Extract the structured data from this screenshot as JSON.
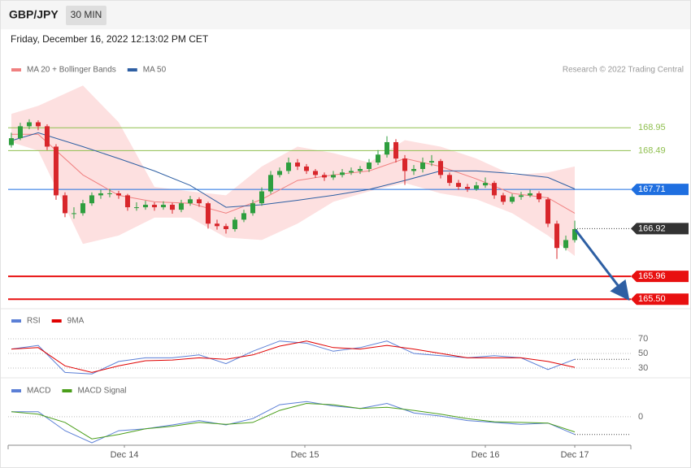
{
  "header": {
    "symbol": "GBP/JPY",
    "interval": "30 MIN",
    "timestamp": "Friday, December 16, 2022 12:13:02 PM CET",
    "credit": "Research © 2022 Trading Central"
  },
  "chart_data": [
    {
      "type": "candlestick",
      "x": [
        0,
        1,
        2,
        3,
        4,
        5,
        6,
        7,
        8,
        9,
        10,
        11,
        12,
        13,
        14,
        15,
        16,
        17,
        18,
        19,
        20,
        21,
        22,
        23,
        24,
        25,
        26,
        27,
        28,
        29,
        30,
        31,
        32,
        33,
        34,
        35,
        36,
        37,
        38,
        39,
        40,
        41,
        42,
        43,
        44,
        45,
        46,
        47,
        48,
        49,
        50,
        51,
        52,
        53,
        54,
        55,
        56,
        57,
        58,
        59,
        60,
        61,
        62,
        63
      ],
      "ohlc": [
        [
          168.6,
          168.85,
          168.55,
          168.74
        ],
        [
          168.74,
          169.05,
          168.7,
          168.98
        ],
        [
          168.98,
          169.12,
          168.92,
          169.06
        ],
        [
          169.06,
          169.1,
          168.9,
          168.98
        ],
        [
          168.98,
          169.02,
          168.5,
          168.57
        ],
        [
          168.57,
          168.62,
          167.5,
          167.59
        ],
        [
          167.59,
          167.65,
          167.15,
          167.23
        ],
        [
          167.23,
          167.35,
          167.12,
          167.23
        ],
        [
          167.23,
          167.5,
          167.18,
          167.43
        ],
        [
          167.43,
          167.65,
          167.38,
          167.59
        ],
        [
          167.59,
          167.7,
          167.52,
          167.63
        ],
        [
          167.63,
          167.72,
          167.55,
          167.63
        ],
        [
          167.63,
          167.68,
          167.52,
          167.59
        ],
        [
          167.59,
          167.62,
          167.28,
          167.35
        ],
        [
          167.35,
          167.45,
          167.28,
          167.35
        ],
        [
          167.35,
          167.48,
          167.3,
          167.4
        ],
        [
          167.4,
          167.45,
          167.28,
          167.35
        ],
        [
          167.35,
          167.47,
          167.3,
          167.4
        ],
        [
          167.4,
          167.44,
          167.22,
          167.3
        ],
        [
          167.3,
          167.5,
          167.25,
          167.43
        ],
        [
          167.43,
          167.58,
          167.38,
          167.51
        ],
        [
          167.51,
          167.55,
          167.36,
          167.43
        ],
        [
          167.43,
          167.46,
          166.92,
          167.02
        ],
        [
          167.02,
          167.1,
          166.9,
          166.97
        ],
        [
          166.97,
          167.02,
          166.82,
          166.91
        ],
        [
          166.91,
          167.15,
          166.86,
          167.1
        ],
        [
          167.1,
          167.3,
          167.05,
          167.23
        ],
        [
          167.23,
          167.5,
          167.18,
          167.43
        ],
        [
          167.43,
          167.75,
          167.38,
          167.67
        ],
        [
          167.67,
          168.08,
          167.62,
          168.0
        ],
        [
          168.0,
          168.15,
          167.95,
          168.08
        ],
        [
          168.08,
          168.35,
          168.02,
          168.25
        ],
        [
          168.25,
          168.32,
          168.1,
          168.17
        ],
        [
          168.17,
          168.22,
          168.02,
          168.08
        ],
        [
          168.08,
          168.12,
          167.94,
          168.0
        ],
        [
          168.0,
          168.05,
          167.88,
          167.95
        ],
        [
          167.95,
          168.08,
          167.9,
          168.0
        ],
        [
          168.0,
          168.12,
          167.95,
          168.05
        ],
        [
          168.05,
          168.15,
          168.0,
          168.08
        ],
        [
          168.08,
          168.18,
          168.02,
          168.12
        ],
        [
          168.12,
          168.32,
          168.06,
          168.25
        ],
        [
          168.25,
          168.5,
          168.2,
          168.41
        ],
        [
          168.41,
          168.78,
          168.35,
          168.66
        ],
        [
          168.66,
          168.72,
          168.25,
          168.33
        ],
        [
          168.33,
          168.4,
          167.8,
          168.08
        ],
        [
          168.08,
          168.2,
          168.0,
          168.12
        ],
        [
          168.12,
          168.35,
          168.05,
          168.25
        ],
        [
          168.25,
          168.4,
          168.18,
          168.28
        ],
        [
          168.28,
          168.32,
          167.93,
          168.0
        ],
        [
          168.0,
          168.05,
          167.78,
          167.84
        ],
        [
          167.84,
          167.9,
          167.7,
          167.76
        ],
        [
          167.76,
          167.82,
          167.66,
          167.72
        ],
        [
          167.72,
          167.86,
          167.68,
          167.79
        ],
        [
          167.79,
          167.95,
          167.74,
          167.84
        ],
        [
          167.84,
          167.88,
          167.52,
          167.59
        ],
        [
          167.59,
          167.64,
          167.4,
          167.46
        ],
        [
          167.46,
          167.62,
          167.42,
          167.56
        ],
        [
          167.56,
          167.66,
          167.5,
          167.59
        ],
        [
          167.59,
          167.7,
          167.55,
          167.63
        ],
        [
          167.63,
          167.67,
          167.45,
          167.51
        ],
        [
          167.51,
          167.55,
          166.95,
          167.02
        ],
        [
          167.02,
          167.08,
          166.31,
          166.53
        ],
        [
          166.53,
          166.78,
          166.48,
          166.69
        ],
        [
          166.69,
          167.08,
          166.64,
          166.91
        ]
      ],
      "up_color": "#2e9e3e",
      "down_color": "#d8262b",
      "overlays": [
        {
          "name": "MA 20 + Bollinger Bands",
          "color": "#f08080",
          "band_color": "#fde0e0",
          "x": [
            0,
            3,
            8,
            12,
            16,
            20,
            24,
            28,
            32,
            36,
            40,
            44,
            48,
            52,
            56,
            60,
            63
          ],
          "values": [
            168.82,
            168.82,
            168.0,
            167.59,
            167.46,
            167.43,
            167.23,
            167.51,
            167.89,
            168.0,
            168.08,
            168.33,
            168.17,
            167.92,
            167.63,
            167.54,
            167.23
          ],
          "upper": [
            169.23,
            169.39,
            169.8,
            169.06,
            167.76,
            167.67,
            167.59,
            168.17,
            168.57,
            168.44,
            168.25,
            168.7,
            168.57,
            168.33,
            168.0,
            168.05,
            168.17
          ],
          "lower": [
            168.66,
            168.49,
            166.61,
            166.78,
            167.14,
            167.14,
            166.74,
            166.69,
            167.02,
            167.46,
            167.67,
            167.84,
            167.63,
            167.51,
            167.23,
            166.78,
            166.37
          ]
        },
        {
          "name": "MA 50",
          "color": "#2e5fa3",
          "x": [
            0,
            3,
            8,
            12,
            16,
            20,
            24,
            28,
            32,
            36,
            40,
            44,
            48,
            52,
            56,
            60,
            63
          ],
          "values": [
            168.69,
            168.85,
            168.57,
            168.33,
            168.08,
            167.79,
            167.35,
            167.4,
            167.49,
            167.59,
            167.71,
            167.89,
            168.08,
            168.08,
            168.03,
            167.95,
            167.72
          ]
        }
      ],
      "levels": [
        {
          "value": 168.95,
          "label": "168.95",
          "color": "#8fbf4f",
          "style": "plain"
        },
        {
          "value": 168.49,
          "label": "168.49",
          "color": "#8fbf4f",
          "style": "plain"
        },
        {
          "value": 167.71,
          "label": "167.71",
          "color": "#1f6fe0",
          "style": "tag"
        },
        {
          "value": 166.92,
          "label": "166.92",
          "color": "#333333",
          "style": "last"
        },
        {
          "value": 165.96,
          "label": "165.96",
          "color": "#e81010",
          "style": "tag"
        },
        {
          "value": 165.5,
          "label": "165.50",
          "color": "#e81010",
          "style": "tag"
        }
      ],
      "xlim": [
        -0.36,
        69.27
      ],
      "ylim": [
        165.34,
        170.54
      ]
    },
    {
      "type": "line",
      "x": [
        0,
        3,
        6,
        9,
        12,
        15,
        18,
        21,
        24,
        27,
        30,
        33,
        36,
        39,
        42,
        45,
        48,
        51,
        54,
        57,
        60,
        63
      ],
      "series": [
        {
          "name": "RSI",
          "color": "#5b7fd6",
          "values": [
            56,
            61,
            24,
            22,
            39,
            44,
            44,
            48,
            36,
            53,
            67,
            64,
            53,
            58,
            67,
            50,
            47,
            44,
            47,
            44,
            28,
            42
          ]
        },
        {
          "name": "9MA",
          "color": "#e00000",
          "values": [
            56,
            58,
            33,
            24,
            33,
            40,
            41,
            44,
            42,
            48,
            60,
            67,
            58,
            56,
            61,
            56,
            50,
            44,
            44,
            44,
            39,
            31
          ]
        }
      ],
      "xlim": [
        -0.36,
        69.27
      ],
      "ylim": [
        20,
        100
      ],
      "yticks": [
        30,
        50,
        70
      ]
    },
    {
      "type": "line",
      "x": [
        0,
        3,
        6,
        9,
        12,
        15,
        18,
        21,
        24,
        27,
        30,
        33,
        36,
        39,
        42,
        45,
        48,
        51,
        54,
        57,
        60,
        63
      ],
      "series": [
        {
          "name": "MACD",
          "color": "#5b7fd6",
          "values": [
            0.08,
            0.08,
            -0.22,
            -0.41,
            -0.22,
            -0.19,
            -0.13,
            -0.06,
            -0.13,
            -0.03,
            0.19,
            0.24,
            0.17,
            0.13,
            0.21,
            0.06,
            0.01,
            -0.06,
            -0.09,
            -0.12,
            -0.1,
            -0.28
          ]
        },
        {
          "name": "MACD Signal",
          "color": "#4a9e1a",
          "values": [
            0.08,
            0.04,
            -0.09,
            -0.35,
            -0.28,
            -0.19,
            -0.15,
            -0.09,
            -0.12,
            -0.09,
            0.1,
            0.21,
            0.19,
            0.13,
            0.15,
            0.1,
            0.04,
            -0.03,
            -0.08,
            -0.09,
            -0.1,
            -0.24
          ]
        }
      ],
      "xlim": [
        -0.36,
        69.27
      ],
      "ylim": [
        -0.45,
        0.55
      ],
      "yticks": [
        0
      ],
      "xticks": [
        {
          "value": 12.64,
          "label": "Dec 14"
        },
        {
          "value": 32.82,
          "label": "Dec 15"
        },
        {
          "value": 53,
          "label": "Dec 16"
        },
        {
          "value": 63,
          "label": "Dec 17"
        }
      ]
    }
  ]
}
